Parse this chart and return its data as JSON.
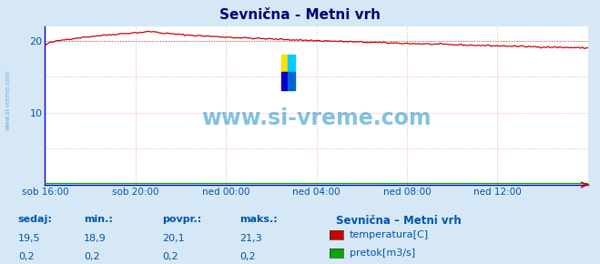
{
  "title": "Sevnična - Metni vrh",
  "bg_color": "#d6e8f5",
  "plot_bg_color": "#ffffff",
  "grid_color": "#ffaaaa",
  "x_labels": [
    "sob 16:00",
    "sob 20:00",
    "ned 00:00",
    "ned 04:00",
    "ned 08:00",
    "ned 12:00"
  ],
  "y_min": 0,
  "y_max": 22,
  "y_ticks": [
    10,
    20
  ],
  "dashed_line_y": 20,
  "temp_color": "#cc0000",
  "pretok_color": "#00aa00",
  "watermark": "www.si-vreme.com",
  "watermark_color": "#3399cc",
  "sidebar_text": "www.si-vreme.com",
  "legend_title": "Sevnična – Metni vrh",
  "label_color": "#0055aa",
  "title_color": "#000077",
  "footer_labels": [
    "sedaj:",
    "min.:",
    "povpr.:",
    "maks.:"
  ],
  "footer_temp": [
    "19,5",
    "18,9",
    "20,1",
    "21,3"
  ],
  "footer_pretok": [
    "0,2",
    "0,2",
    "0,2",
    "0,2"
  ],
  "legend_items": [
    "temperatura[C]",
    "pretok[m3/s]"
  ],
  "legend_colors": [
    "#cc0000",
    "#00aa00"
  ],
  "axis_color": "#0000cc",
  "logo_colors": [
    "#ffdd00",
    "#00aaff",
    "#0000cc",
    "#00cccc"
  ]
}
